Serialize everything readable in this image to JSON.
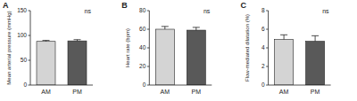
{
  "chart_data": [
    {
      "type": "bar",
      "title": "A",
      "y_label": "Mean arterial pressure (mmHg)",
      "categories": [
        "AM",
        "PM"
      ],
      "values": [
        88,
        89
      ],
      "errors": [
        2,
        2.5
      ],
      "colors": [
        "#d4d4d4",
        "#595959"
      ],
      "ylim": [
        0,
        150
      ],
      "yticks": [
        0,
        50,
        100,
        150
      ],
      "annotations": [
        "ns"
      ]
    },
    {
      "type": "bar",
      "title": "B",
      "y_label": "Heart rate (bpm)",
      "categories": [
        "AM",
        "PM"
      ],
      "values": [
        60,
        59
      ],
      "errors": [
        3,
        3
      ],
      "colors": [
        "#d4d4d4",
        "#595959"
      ],
      "ylim": [
        0,
        80
      ],
      "yticks": [
        0,
        20,
        40,
        60,
        80
      ],
      "annotations": [
        "ns"
      ]
    },
    {
      "type": "bar",
      "title": "C",
      "y_label": "Flow-mediated dilatation (%)",
      "categories": [
        "AM",
        "PM"
      ],
      "values": [
        4.9,
        4.7
      ],
      "errors": [
        0.5,
        0.6
      ],
      "colors": [
        "#d4d4d4",
        "#595959"
      ],
      "ylim": [
        0,
        8
      ],
      "yticks": [
        0,
        2,
        4,
        6,
        8
      ],
      "annotations": [
        "ns"
      ]
    }
  ]
}
